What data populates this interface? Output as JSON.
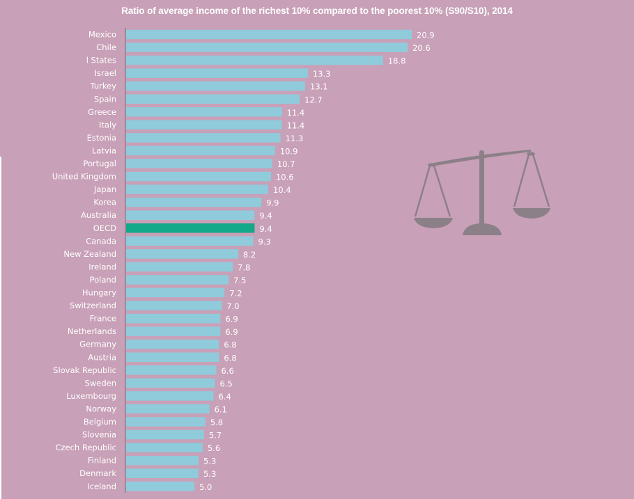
{
  "chart_data": {
    "type": "bar",
    "orientation": "horizontal",
    "title": "Ratio of average income of the richest 10% compared to the poorest 10% (S90/S10), 2014",
    "xlabel": "",
    "ylabel": "",
    "xlim": [
      0,
      21
    ],
    "grid": false,
    "legend": "none",
    "categories": [
      "Mexico",
      "Chile",
      "l States",
      "Israel",
      "Turkey",
      "Spain",
      "Greece",
      "Italy",
      "Estonia",
      "Latvia",
      "Portugal",
      "United Kingdom",
      "Japan",
      "Korea",
      "Australia",
      "OECD",
      "Canada",
      "New Zealand",
      "Ireland",
      "Poland",
      "Hungary",
      "Switzerland",
      "France",
      "Netherlands",
      "Germany",
      "Austria",
      "Slovak Republic",
      "Sweden",
      "Luxembourg",
      "Norway",
      "Belgium",
      "Slovenia",
      "Czech Republic",
      "Finland",
      "Denmark",
      "Iceland"
    ],
    "values": [
      20.9,
      20.6,
      18.8,
      13.3,
      13.1,
      12.7,
      11.4,
      11.4,
      11.3,
      10.9,
      10.7,
      10.6,
      10.4,
      9.9,
      9.4,
      9.4,
      9.3,
      8.2,
      7.8,
      7.5,
      7.2,
      7.0,
      6.9,
      6.9,
      6.8,
      6.8,
      6.6,
      6.5,
      6.4,
      6.1,
      5.8,
      5.7,
      5.6,
      5.3,
      5.3,
      5.0
    ],
    "value_labels": [
      "20.9",
      "20.6",
      "18.8",
      "13.3",
      "13.1",
      "12.7",
      "11.4",
      "11.4",
      "11.3",
      "10.9",
      "10.7",
      "10.6",
      "10.4",
      "9.9",
      "9.4",
      "9.4",
      "9.3",
      "8.2",
      "7.8",
      "7.5",
      "7.2",
      "7.0",
      "6.9",
      "6.9",
      "6.8",
      "6.8",
      "6.6",
      "6.5",
      "6.4",
      "6.1",
      "5.8",
      "5.7",
      "5.6",
      "5.3",
      "5.3",
      "5.0"
    ],
    "highlight_category": "OECD"
  },
  "colors": {
    "background": "#c8a0b7",
    "bar": "#8fcbdb",
    "highlight_bar": "#12a88a",
    "axis": "#7a6f78",
    "text": "#ffffff",
    "icon": "#8c8088"
  },
  "decoration": {
    "icon": "balance-scale-icon"
  }
}
